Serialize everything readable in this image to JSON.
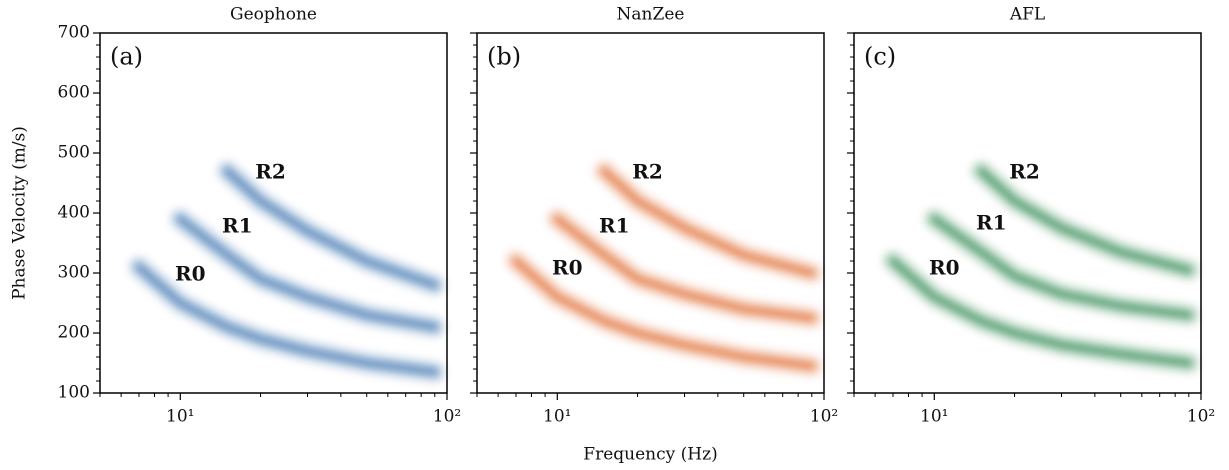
{
  "chart_data": [
    {
      "type": "density",
      "title": "Geophone",
      "panel_label": "(a)",
      "color": "#08519c",
      "ylabel": "Phase Velocity (m/s)",
      "xlim": [
        5,
        100
      ],
      "log_x": true,
      "xticks": [
        {
          "value": 10,
          "label": "10¹"
        },
        {
          "value": 100,
          "label": "10²"
        }
      ],
      "xminorticks": [
        5,
        6,
        7,
        8,
        9,
        20,
        30,
        40,
        50,
        60,
        70,
        80,
        90
      ],
      "ylim": [
        100,
        700
      ],
      "yticks": [
        100,
        200,
        300,
        400,
        500,
        600,
        700
      ],
      "yminorticks": [
        120,
        140,
        160,
        180,
        220,
        240,
        260,
        280,
        320,
        340,
        360,
        380,
        420,
        440,
        460,
        480,
        520,
        540,
        560,
        580,
        620,
        640,
        660,
        680
      ],
      "series": [
        {
          "name": "R0",
          "x": [
            7,
            10,
            15,
            20,
            30,
            50,
            90
          ],
          "values": [
            310,
            250,
            210,
            190,
            170,
            150,
            135
          ]
        },
        {
          "name": "R1",
          "x": [
            10,
            15,
            20,
            30,
            50,
            90
          ],
          "values": [
            390,
            330,
            290,
            260,
            230,
            210
          ]
        },
        {
          "name": "R2",
          "x": [
            15,
            20,
            30,
            50,
            90
          ],
          "values": [
            470,
            420,
            370,
            320,
            280
          ]
        }
      ]
    },
    {
      "type": "density",
      "title": "NanZee",
      "panel_label": "(b)",
      "color": "#d94801",
      "xlabel": "Frequency (Hz)",
      "xlim": [
        5,
        100
      ],
      "log_x": true,
      "xticks": [
        {
          "value": 10,
          "label": "10¹"
        },
        {
          "value": 100,
          "label": "10²"
        }
      ],
      "xminorticks": [
        5,
        6,
        7,
        8,
        9,
        20,
        30,
        40,
        50,
        60,
        70,
        80,
        90
      ],
      "ylim": [
        100,
        700
      ],
      "series": [
        {
          "name": "R0",
          "x": [
            7,
            10,
            15,
            20,
            30,
            50,
            90
          ],
          "values": [
            320,
            260,
            220,
            200,
            180,
            160,
            145
          ]
        },
        {
          "name": "R1",
          "x": [
            10,
            15,
            20,
            30,
            50,
            90
          ],
          "values": [
            390,
            330,
            290,
            265,
            240,
            225
          ]
        },
        {
          "name": "R2",
          "x": [
            15,
            20,
            30,
            50,
            90
          ],
          "values": [
            470,
            420,
            375,
            330,
            300
          ]
        }
      ]
    },
    {
      "type": "density",
      "title": "AFL",
      "panel_label": "(c)",
      "color": "#006d2c",
      "xlim": [
        5,
        100
      ],
      "log_x": true,
      "xticks": [
        {
          "value": 10,
          "label": "10¹"
        },
        {
          "value": 100,
          "label": "10²"
        }
      ],
      "xminorticks": [
        5,
        6,
        7,
        8,
        9,
        20,
        30,
        40,
        50,
        60,
        70,
        80,
        90
      ],
      "ylim": [
        100,
        700
      ],
      "series": [
        {
          "name": "R0",
          "x": [
            7,
            10,
            15,
            20,
            30,
            50,
            90
          ],
          "values": [
            320,
            260,
            220,
            200,
            180,
            165,
            150
          ]
        },
        {
          "name": "R1",
          "x": [
            10,
            15,
            20,
            30,
            50,
            90
          ],
          "values": [
            390,
            335,
            295,
            265,
            245,
            230
          ]
        },
        {
          "name": "R2",
          "x": [
            15,
            20,
            30,
            50,
            90
          ],
          "values": [
            470,
            420,
            375,
            335,
            305
          ]
        }
      ]
    }
  ]
}
